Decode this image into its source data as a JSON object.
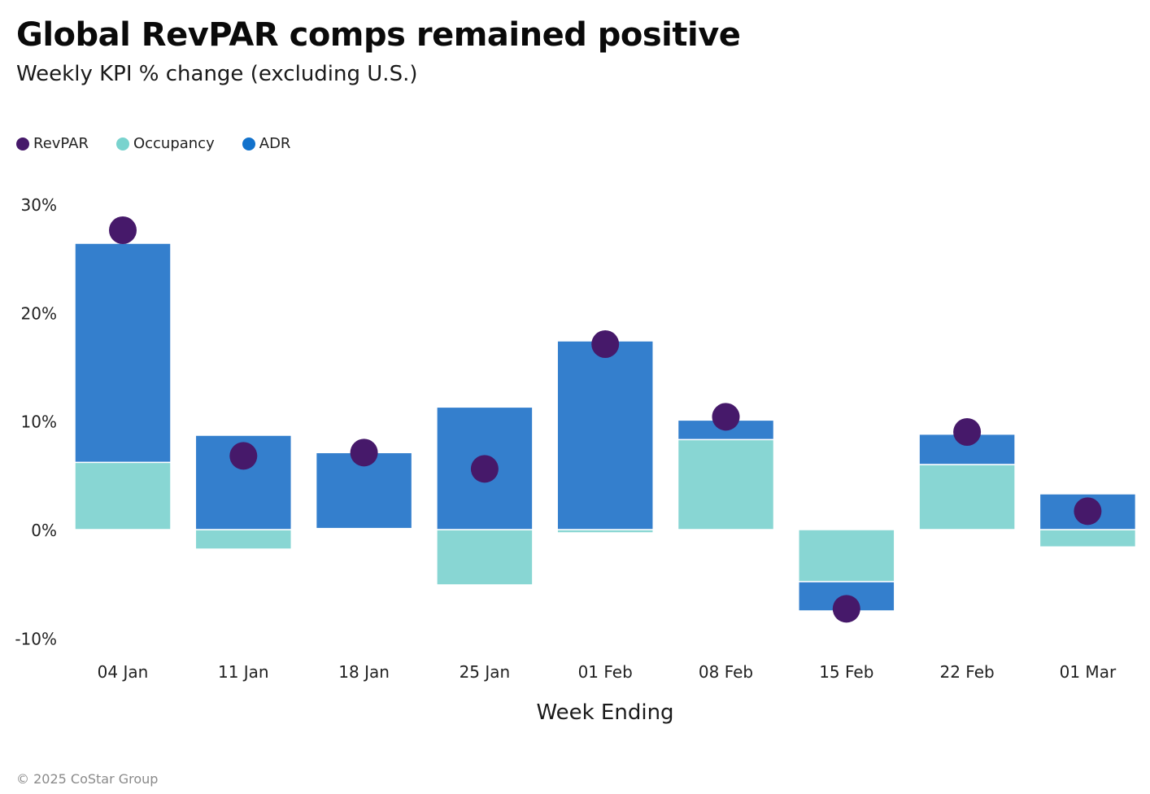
{
  "header": {
    "title": "Global RevPAR comps remained positive",
    "subtitle": "Weekly KPI % change (excluding U.S.)"
  },
  "legend": [
    {
      "key": "revpar",
      "label": "RevPAR",
      "color": "#46196A"
    },
    {
      "key": "occupancy",
      "label": "Occupancy",
      "color": "#79D3CE"
    },
    {
      "key": "adr",
      "label": "ADR",
      "color": "#1272CC"
    }
  ],
  "colors": {
    "adr_bar": "#347FCD",
    "occupancy_bar": "#88D6D3",
    "revpar_dot": "#46196A"
  },
  "footer": "© 2025 CoStar Group",
  "chart_data": {
    "type": "bar",
    "subtype": "stacked bar with dot overlay",
    "title": "Global RevPAR comps remained positive",
    "subtitle": "Weekly KPI % change (excluding U.S.)",
    "xlabel": "Week Ending",
    "ylabel": "",
    "ylim": [
      -10,
      30
    ],
    "yticks": [
      30,
      20,
      10,
      0,
      -10
    ],
    "ytick_labels": [
      "30%",
      "20%",
      "10%",
      "0%",
      "-10%"
    ],
    "grid": false,
    "legend_position": "top-left",
    "categories": [
      "04 Jan",
      "11 Jan",
      "18 Jan",
      "25 Jan",
      "01 Feb",
      "08 Feb",
      "15 Feb",
      "22 Feb",
      "01 Mar"
    ],
    "series": [
      {
        "name": "Occupancy",
        "type": "bar",
        "values": [
          6.2,
          -1.8,
          0.1,
          -5.1,
          -0.3,
          8.3,
          -4.8,
          6.0,
          -1.6
        ]
      },
      {
        "name": "ADR",
        "type": "bar",
        "values": [
          20.2,
          8.7,
          7.0,
          11.3,
          17.4,
          1.8,
          -2.7,
          2.8,
          3.3
        ]
      },
      {
        "name": "RevPAR",
        "type": "dot",
        "values": [
          27.6,
          6.8,
          7.1,
          5.6,
          17.1,
          10.4,
          -7.3,
          9.0,
          1.7
        ]
      }
    ]
  }
}
